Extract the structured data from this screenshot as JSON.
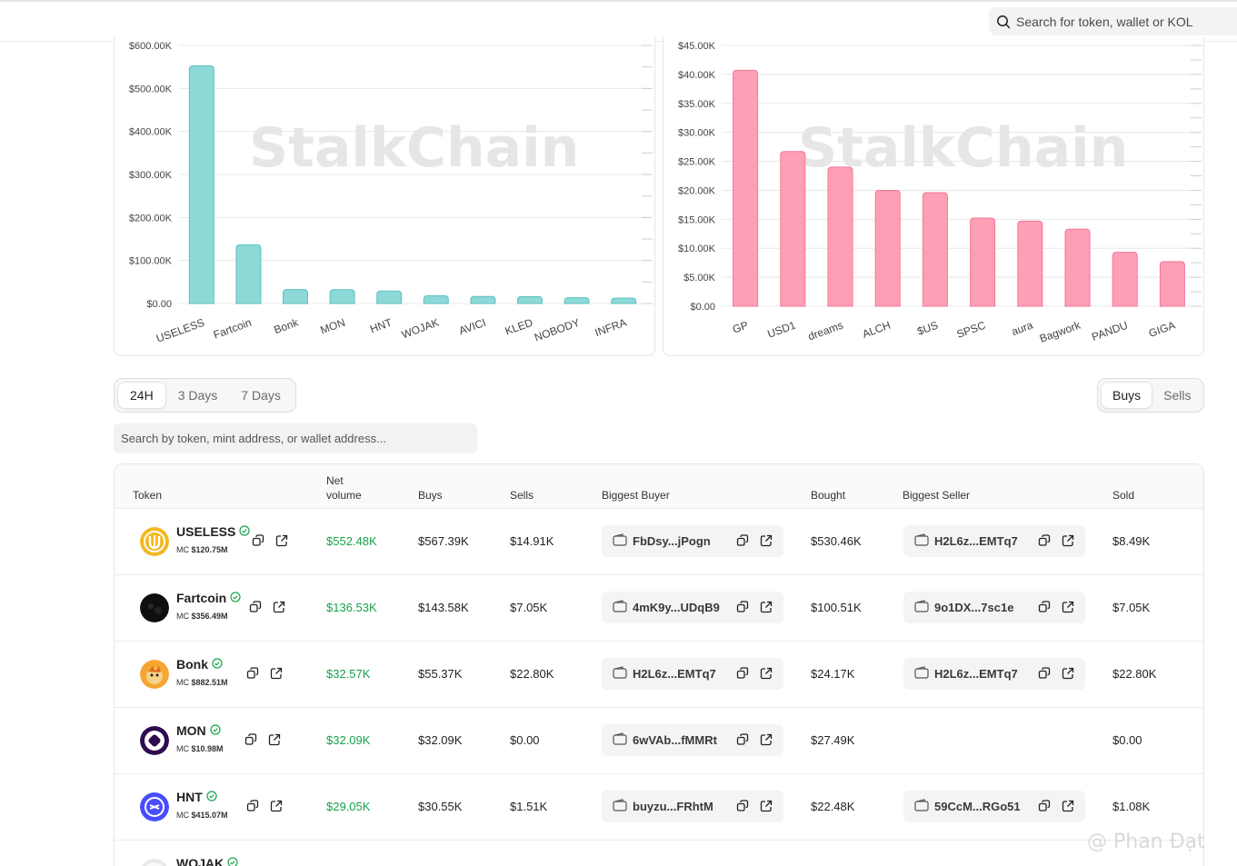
{
  "header": {
    "search_placeholder": "Search for token, wallet or KOL"
  },
  "watermark": "StalkChain",
  "charts": [
    {
      "type": "bar",
      "color": "#8dd9d8",
      "stroke": "#5bc2c1",
      "y_ticks": [
        "$0.00",
        "$100.00K",
        "$200.00K",
        "$300.00K",
        "$400.00K",
        "$500.00K",
        "$600.00K"
      ],
      "ylim": [
        0,
        600000
      ],
      "categories": [
        "USELESS",
        "Fartcoin",
        "Bonk",
        "MON",
        "HNT",
        "WOJAK",
        "AVICI",
        "KLED",
        "NOBODY",
        "INFRA"
      ],
      "values": [
        552480,
        136530,
        32570,
        32090,
        29050,
        18000,
        16500,
        16000,
        13500,
        12500
      ]
    },
    {
      "type": "bar",
      "color": "#ff9fb5",
      "stroke": "#f27797",
      "y_ticks": [
        "$0.00",
        "$5.00K",
        "$10.00K",
        "$15.00K",
        "$20.00K",
        "$25.00K",
        "$30.00K",
        "$35.00K",
        "$40.00K",
        "$45.00K"
      ],
      "ylim": [
        0,
        45000
      ],
      "categories": [
        "GP",
        "USD1",
        "dreams",
        "ALCH",
        "$US",
        "SPSC",
        "aura",
        "Bagwork",
        "PANDU",
        "GIGA"
      ],
      "values": [
        40700,
        26700,
        24000,
        20000,
        19600,
        15200,
        14700,
        13300,
        9300,
        7700
      ]
    }
  ],
  "timeframes": [
    "24H",
    "3 Days",
    "7 Days"
  ],
  "side_toggle": [
    "Buys",
    "Sells"
  ],
  "table_search_placeholder": "Search by token, mint address, or wallet address...",
  "columns": {
    "token": "Token",
    "net_volume_1": "Net",
    "net_volume_2": "volume",
    "buys": "Buys",
    "sells": "Sells",
    "biggest_buyer": "Biggest Buyer",
    "bought": "Bought",
    "biggest_seller": "Biggest Seller",
    "sold": "Sold"
  },
  "rows": [
    {
      "name": "USELESS",
      "mc_label": "MC",
      "mc": "$120.75M",
      "net": "$552.48K",
      "buys": "$567.39K",
      "sells": "$14.91K",
      "buyer": "FbDsy...jPogn",
      "bought": "$530.46K",
      "seller": "H2L6z...EMTq7",
      "sold": "$8.49K",
      "logo": "useless"
    },
    {
      "name": "Fartcoin",
      "mc_label": "MC",
      "mc": "$356.49M",
      "net": "$136.53K",
      "buys": "$143.58K",
      "sells": "$7.05K",
      "buyer": "4mK9y...UDqB9",
      "bought": "$100.51K",
      "seller": "9o1DX...7sc1e",
      "sold": "$7.05K",
      "logo": "fartcoin"
    },
    {
      "name": "Bonk",
      "mc_label": "MC",
      "mc": "$882.51M",
      "net": "$32.57K",
      "buys": "$55.37K",
      "sells": "$22.80K",
      "buyer": "H2L6z...EMTq7",
      "bought": "$24.17K",
      "seller": "H2L6z...EMTq7",
      "sold": "$22.80K",
      "logo": "bonk"
    },
    {
      "name": "MON",
      "mc_label": "MC",
      "mc": "$10.98M",
      "net": "$32.09K",
      "buys": "$32.09K",
      "sells": "$0.00",
      "buyer": "6wVAb...fMMRt",
      "bought": "$27.49K",
      "seller": "",
      "sold": "$0.00",
      "logo": "mon"
    },
    {
      "name": "HNT",
      "mc_label": "MC",
      "mc": "$415.07M",
      "net": "$29.05K",
      "buys": "$30.55K",
      "sells": "$1.51K",
      "buyer": "buyzu...FRhtM",
      "bought": "$22.48K",
      "seller": "59CcM...RGo51",
      "sold": "$1.08K",
      "logo": "hnt"
    },
    {
      "name": "WOJAK",
      "mc_label": "",
      "mc": "",
      "net": "",
      "buys": "",
      "sells": "",
      "buyer": "",
      "bought": "",
      "seller": "",
      "sold": "",
      "logo": "wojak"
    }
  ],
  "credit": "@ Phan Đạt"
}
